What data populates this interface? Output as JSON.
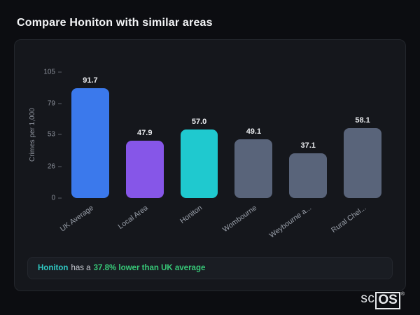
{
  "page": {
    "title": "Compare Honiton with similar areas"
  },
  "chart_data": {
    "type": "bar",
    "title": "",
    "xlabel": "",
    "ylabel": "Crimes per 1,000",
    "categories": [
      "UK Average",
      "Local Area",
      "Honiton",
      "Wombourne",
      "Weybourne a...",
      "Rural Chel..."
    ],
    "values": [
      91.7,
      47.9,
      57.0,
      49.1,
      37.1,
      58.1
    ],
    "value_labels": [
      "91.7",
      "47.9",
      "57.0",
      "49.1",
      "37.1",
      "58.1"
    ],
    "bar_colors": [
      "#3b79ec",
      "#8656e8",
      "#1fc9cf",
      "#59647a",
      "#59647a",
      "#59647a"
    ],
    "yticks": [
      0,
      26,
      53,
      79,
      105
    ],
    "ylim": [
      0,
      105
    ],
    "grid": false,
    "legend": false
  },
  "note": {
    "subject": "Honiton",
    "middle": "has a",
    "highlight": "37.8% lower than UK average"
  },
  "logo": {
    "prefix": "sc",
    "suffix": "OS",
    "registered": "®"
  }
}
